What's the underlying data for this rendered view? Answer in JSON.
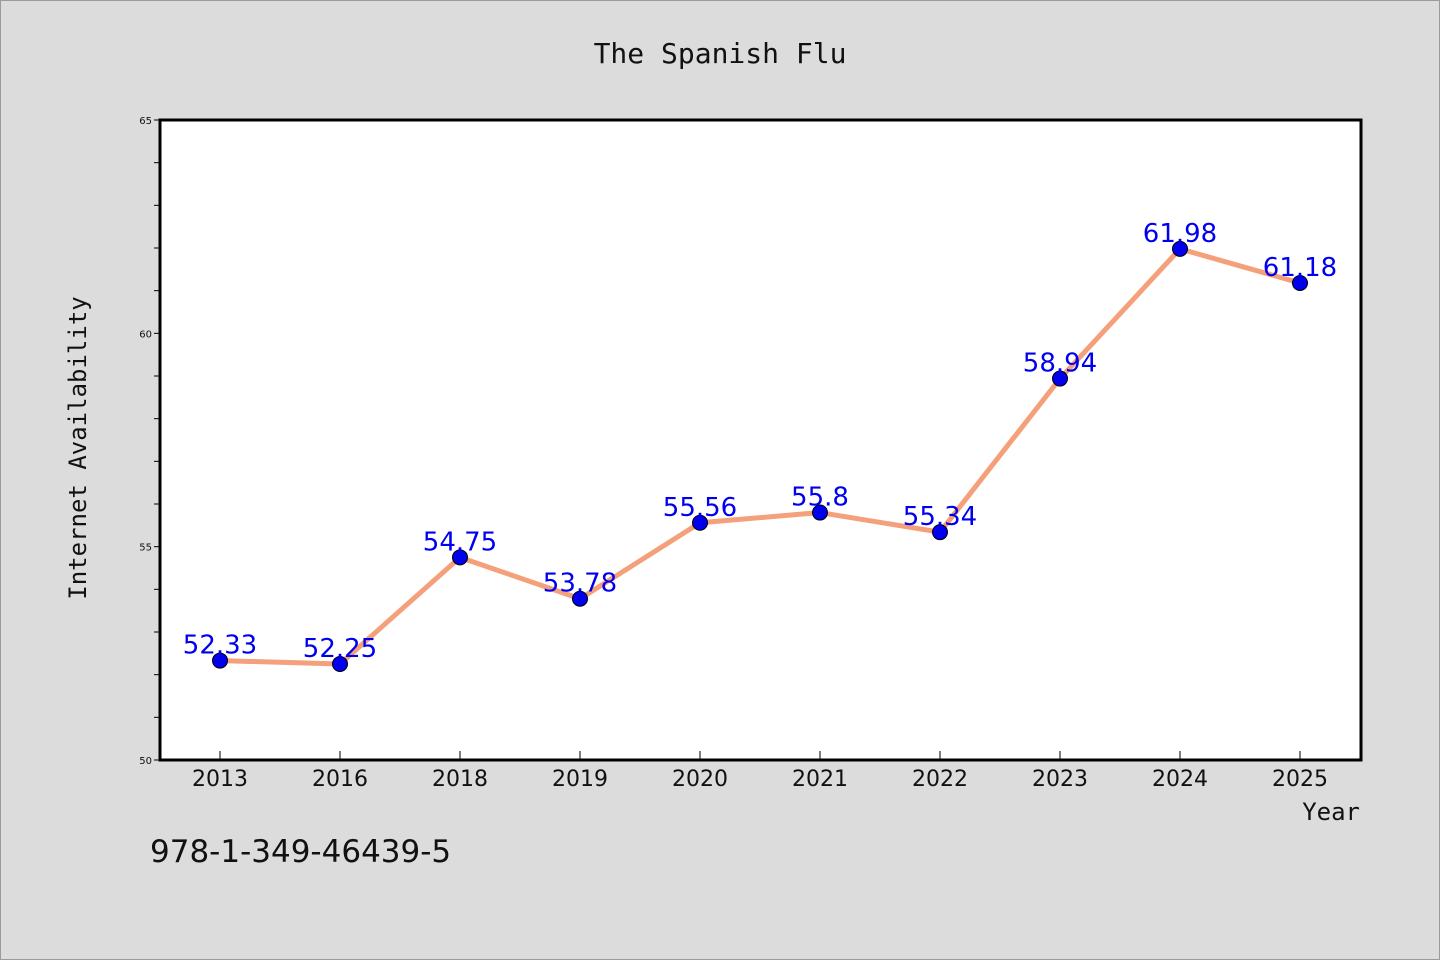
{
  "chart_data": {
    "type": "line",
    "title": "The Spanish Flu",
    "xlabel": "Year",
    "ylabel": "Internet Availability",
    "categories": [
      "2013",
      "2016",
      "2018",
      "2019",
      "2020",
      "2021",
      "2022",
      "2023",
      "2024",
      "2025"
    ],
    "series": [
      {
        "values": [
          52.33,
          52.25,
          54.75,
          53.78,
          55.56,
          55.8,
          55.34,
          58.94,
          61.98,
          61.18
        ],
        "labels": [
          "52.33",
          "52.25",
          "54.75",
          "53.78",
          "55.56",
          "55.8",
          "55.34",
          "58.94",
          "61.98",
          "61.18"
        ]
      }
    ],
    "ylim": [
      50,
      65
    ],
    "yticks": [
      "50",
      "55",
      "60",
      "65"
    ],
    "grid": false,
    "line_color": "#f4a07a",
    "marker_color": "#0000ee",
    "label_color": "#0000ee"
  },
  "footer": {
    "code": "978-1-349-46439-5"
  }
}
